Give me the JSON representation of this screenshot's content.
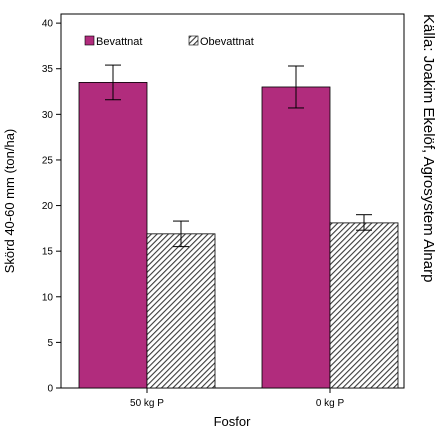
{
  "chart_data": {
    "type": "bar",
    "xlabel": "Fosfor",
    "ylabel": "Skörd 40-60 mm (ton/ha)",
    "ylim": [
      0,
      41
    ],
    "yticks": [
      0,
      5,
      10,
      15,
      20,
      25,
      30,
      35,
      40
    ],
    "categories": [
      "50 kg P",
      "0 kg P"
    ],
    "series": [
      {
        "name": "Bevattnat",
        "values": [
          33.5,
          33.0
        ],
        "error_low": [
          31.6,
          30.7
        ],
        "error_high": [
          35.4,
          35.3
        ],
        "color": "#b12c7d",
        "pattern": "solid"
      },
      {
        "name": "Obevattnat",
        "values": [
          16.9,
          18.1
        ],
        "error_low": [
          15.5,
          17.3
        ],
        "error_high": [
          18.3,
          19.0
        ],
        "color": "#3a3a3a",
        "pattern": "hatched"
      }
    ],
    "legend": "top-left",
    "grid": false,
    "source_note": "Källa: Joakim Ekelöf, Agrosystem Alnarp"
  }
}
